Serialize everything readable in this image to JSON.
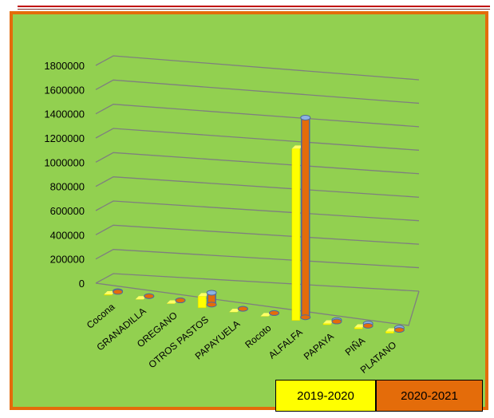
{
  "chart_data": {
    "type": "bar",
    "categories": [
      "Cocona",
      "GRANADILLA",
      "OREGANO",
      "OTROS PASTOS",
      "PAPAYUELA",
      "Rocoto",
      "ALFALFA",
      "PAPAYA",
      "PIÑA",
      "PLATANO"
    ],
    "series": [
      {
        "name": "2019-2020",
        "values": [
          6000,
          0,
          0,
          95000,
          0,
          0,
          1420000,
          10000,
          12000,
          14000
        ],
        "color": "#ffff00"
      },
      {
        "name": "2020-2021",
        "values": [
          6000,
          0,
          0,
          98000,
          0,
          0,
          1650000,
          12000,
          18000,
          18000
        ],
        "color": "#e46c0a"
      }
    ],
    "y_ticks": [
      "0",
      "200000",
      "400000",
      "600000",
      "800000",
      "1000000",
      "1200000",
      "1400000",
      "1600000",
      "1800000"
    ],
    "ylim": [
      0,
      1800000
    ],
    "grid": true,
    "legend_placement": "bottom-right",
    "background": "#92d050",
    "border_color": "#e46c0a"
  }
}
